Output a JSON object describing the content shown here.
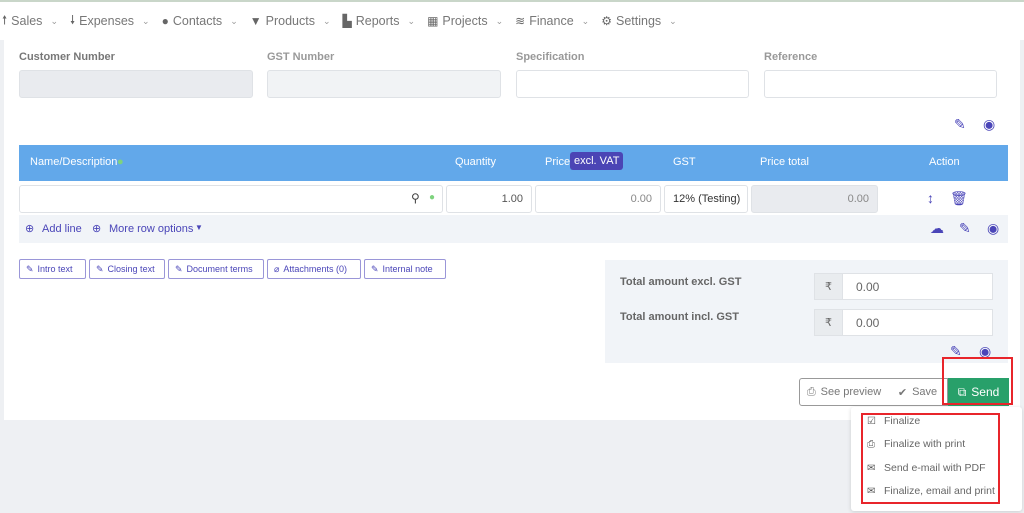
{
  "nav": [
    {
      "icon": "arrow-up-icon",
      "label": "Sales"
    },
    {
      "icon": "arrow-down-icon",
      "label": "Expenses"
    },
    {
      "icon": "user-icon",
      "label": "Contacts"
    },
    {
      "icon": "cart-icon",
      "label": "Products"
    },
    {
      "icon": "chart-icon",
      "label": "Reports"
    },
    {
      "icon": "calendar-icon",
      "label": "Projects"
    },
    {
      "icon": "coins-icon",
      "label": "Finance"
    },
    {
      "icon": "gear-icon",
      "label": "Settings"
    }
  ],
  "fields": {
    "customer_number": {
      "label": "Customer Number",
      "value": ""
    },
    "gst_number": {
      "label": "GST Number",
      "value": ""
    },
    "specification": {
      "label": "Specification",
      "value": ""
    },
    "reference": {
      "label": "Reference",
      "value": ""
    }
  },
  "table": {
    "headers": {
      "name": "Name/Description",
      "quantity": "Quantity",
      "price": "Price",
      "vat_badge": "excl. VAT",
      "gst": "GST",
      "total": "Price total",
      "action": "Action"
    },
    "row": {
      "name": "",
      "quantity": "1.00",
      "price": "0.00",
      "gst": "12% (Testing)",
      "total": "0.00"
    },
    "add_line": "Add line",
    "more_row_options": "More row options"
  },
  "text_buttons": [
    "Intro text",
    "Closing text",
    "Document terms",
    "Attachments (0)",
    "Internal note"
  ],
  "totals": {
    "excl_label": "Total amount excl. GST",
    "excl_value": "0.00",
    "incl_label": "Total amount incl. GST",
    "incl_value": "0.00",
    "currency": "₹"
  },
  "actions": {
    "preview": "See preview",
    "save": "Save",
    "send": "Send"
  },
  "send_menu": [
    "Finalize",
    "Finalize with print",
    "Send e-mail with PDF",
    "Finalize, email and print"
  ],
  "colors": {
    "header": "#62a8ea",
    "accent": "#4a45b8",
    "send": "#28a06a",
    "highlight": "#e8252b"
  }
}
